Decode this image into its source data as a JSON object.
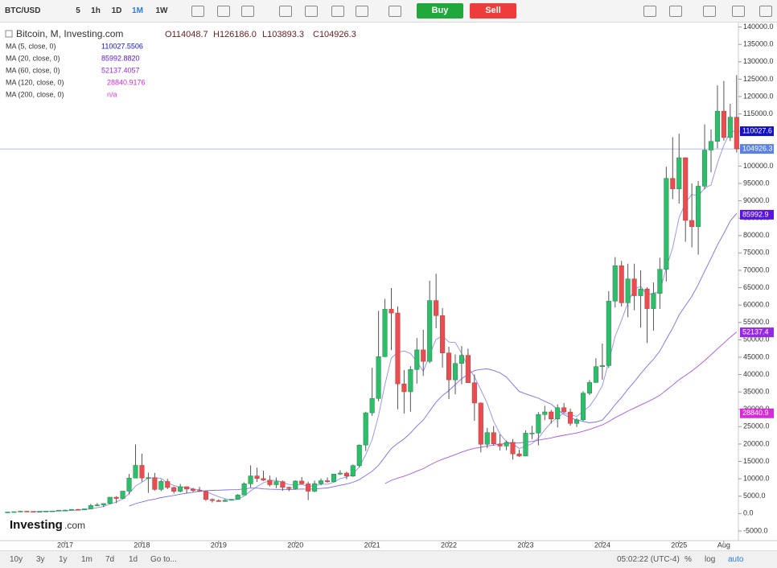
{
  "toolbar": {
    "symbol": "BTC/USD",
    "intervals": [
      "5",
      "1h",
      "1D",
      "1M",
      "1W"
    ],
    "active_interval": 3,
    "buy": "Buy",
    "sell": "Sell"
  },
  "legend": {
    "title": "Bitcoin, M, Investing.com",
    "ohlc": [
      "O114048.7",
      "H126186.0",
      "L103893.3",
      "C104926.3"
    ]
  },
  "logo": "Investing",
  "logo_suffix": ".com",
  "bottom_bar": {
    "ranges": [
      "10y",
      "3y",
      "1y",
      "1m",
      "7d",
      "1d"
    ],
    "goto": "Go to...",
    "time": "05:02:22 (UTC-4)",
    "options": [
      "%",
      "log",
      "auto"
    ]
  },
  "chart_data": {
    "type": "candlestick",
    "up_color": "#2ebd6b",
    "down_color": "#ea4d4f",
    "candles": [
      [
        416,
        467,
        414,
        448
      ],
      [
        448,
        550,
        444,
        531
      ],
      [
        531,
        780,
        523,
        673
      ],
      [
        673,
        705,
        605,
        624
      ],
      [
        624,
        625,
        533,
        575
      ],
      [
        575,
        612,
        571,
        609
      ],
      [
        609,
        720,
        603,
        700
      ],
      [
        700,
        753,
        692,
        742
      ],
      [
        742,
        979,
        741,
        964
      ],
      [
        964,
        1153,
        756,
        970
      ],
      [
        970,
        1210,
        946,
        1190
      ],
      [
        1190,
        1345,
        890,
        1080
      ],
      [
        1080,
        1375,
        1080,
        1350
      ],
      [
        1350,
        2760,
        1350,
        2300
      ],
      [
        2300,
        3000,
        2100,
        2480
      ],
      [
        2480,
        2920,
        1840,
        2875
      ],
      [
        2875,
        4760,
        2700,
        4700
      ],
      [
        4700,
        5000,
        2980,
        4340
      ],
      [
        4340,
        6470,
        4160,
        6450
      ],
      [
        6450,
        11400,
        5500,
        10200
      ],
      [
        10200,
        19890,
        10200,
        13860
      ],
      [
        13860,
        17250,
        9200,
        10220
      ],
      [
        10220,
        11790,
        5950,
        10330
      ],
      [
        10330,
        11700,
        6580,
        6930
      ],
      [
        6930,
        9780,
        6450,
        9240
      ],
      [
        9240,
        10000,
        7040,
        7500
      ],
      [
        7500,
        7780,
        5770,
        6400
      ],
      [
        6400,
        8500,
        6070,
        7730
      ],
      [
        7730,
        7760,
        5880,
        7030
      ],
      [
        7030,
        7410,
        6110,
        6630
      ],
      [
        6630,
        7680,
        6200,
        6370
      ],
      [
        6370,
        6620,
        3650,
        4040
      ],
      [
        4040,
        4380,
        3160,
        3740
      ],
      [
        3740,
        4090,
        3400,
        3460
      ],
      [
        3460,
        4200,
        3380,
        3820
      ],
      [
        3820,
        4140,
        3720,
        4100
      ],
      [
        4100,
        5600,
        4050,
        5320
      ],
      [
        5320,
        9000,
        5320,
        8560
      ],
      [
        8560,
        13880,
        7500,
        10820
      ],
      [
        10820,
        13200,
        9100,
        10080
      ],
      [
        10080,
        12300,
        9400,
        9600
      ],
      [
        9600,
        10910,
        7800,
        8290
      ],
      [
        8290,
        10370,
        7300,
        9200
      ],
      [
        9200,
        9510,
        6520,
        7550
      ],
      [
        7550,
        7750,
        6430,
        7190
      ],
      [
        7190,
        9580,
        6870,
        9350
      ],
      [
        9350,
        10500,
        8450,
        8540
      ],
      [
        8540,
        9190,
        3860,
        6420
      ],
      [
        6420,
        9470,
        6150,
        8620
      ],
      [
        8620,
        10080,
        8100,
        9450
      ],
      [
        9450,
        10400,
        8900,
        9140
      ],
      [
        9140,
        11450,
        8960,
        11350
      ],
      [
        11350,
        12470,
        11110,
        11650
      ],
      [
        11650,
        12050,
        9880,
        10780
      ],
      [
        10780,
        14100,
        10540,
        13800
      ],
      [
        13800,
        19880,
        13260,
        19700
      ],
      [
        19700,
        29300,
        18000,
        28990
      ],
      [
        28990,
        41950,
        28130,
        33110
      ],
      [
        33110,
        58350,
        32300,
        45140
      ],
      [
        45140,
        61780,
        45000,
        58800
      ],
      [
        58800,
        64900,
        47000,
        57700
      ],
      [
        57700,
        59600,
        30000,
        37300
      ],
      [
        37300,
        41300,
        28800,
        35040
      ],
      [
        35040,
        42400,
        29300,
        41460
      ],
      [
        41460,
        50500,
        37400,
        47100
      ],
      [
        47100,
        52900,
        39600,
        43790
      ],
      [
        43790,
        67000,
        43300,
        61300
      ],
      [
        61300,
        69000,
        53300,
        56950
      ],
      [
        56950,
        59100,
        42000,
        46200
      ],
      [
        46200,
        47990,
        32950,
        38480
      ],
      [
        38480,
        45800,
        34320,
        43190
      ],
      [
        43190,
        48200,
        37200,
        45540
      ],
      [
        45540,
        47440,
        37700,
        37640
      ],
      [
        37640,
        40020,
        26700,
        31800
      ],
      [
        31800,
        31990,
        17600,
        19930
      ],
      [
        19930,
        24670,
        18800,
        23300
      ],
      [
        23300,
        25200,
        19600,
        20050
      ],
      [
        20050,
        22790,
        18150,
        19420
      ],
      [
        19420,
        21000,
        18200,
        20490
      ],
      [
        20490,
        21450,
        15500,
        17170
      ],
      [
        17170,
        18400,
        16300,
        16540
      ],
      [
        16540,
        23950,
        16500,
        23130
      ],
      [
        23130,
        25250,
        21400,
        23150
      ],
      [
        23150,
        29200,
        19600,
        28480
      ],
      [
        28480,
        31000,
        26900,
        29250
      ],
      [
        29250,
        29850,
        25900,
        27220
      ],
      [
        27220,
        31400,
        24800,
        30470
      ],
      [
        30470,
        31800,
        28900,
        29230
      ],
      [
        29230,
        30200,
        25300,
        25940
      ],
      [
        25940,
        27500,
        24900,
        26970
      ],
      [
        26970,
        35200,
        26600,
        34650
      ],
      [
        34650,
        38400,
        34100,
        37720
      ],
      [
        37720,
        44700,
        37600,
        42280
      ],
      [
        42280,
        48900,
        38500,
        42580
      ],
      [
        42580,
        64000,
        41900,
        61130
      ],
      [
        61130,
        73800,
        59300,
        71330
      ],
      [
        71330,
        72700,
        59600,
        60640
      ],
      [
        60640,
        71900,
        56500,
        67520
      ],
      [
        67520,
        71900,
        58500,
        62680
      ],
      [
        62680,
        70000,
        53500,
        64620
      ],
      [
        64620,
        65100,
        49100,
        58970
      ],
      [
        58970,
        66500,
        52600,
        63330
      ],
      [
        63330,
        73600,
        58900,
        70290
      ],
      [
        70290,
        99800,
        66800,
        96450
      ],
      [
        96450,
        108300,
        90500,
        93430
      ],
      [
        93430,
        109300,
        89200,
        102400
      ],
      [
        102400,
        102500,
        78200,
        84350
      ],
      [
        84350,
        95000,
        76600,
        82550
      ],
      [
        82550,
        95700,
        74500,
        94200
      ],
      [
        94200,
        112000,
        93300,
        104600
      ],
      [
        104600,
        110500,
        98200,
        107100
      ],
      [
        107100,
        123200,
        105100,
        115800
      ],
      [
        115800,
        124500,
        107300,
        108200
      ],
      [
        108200,
        117900,
        107200,
        114050
      ],
      [
        114048.7,
        126186.0,
        103893.3,
        104926.3
      ]
    ],
    "xticks": [
      {
        "value": 9,
        "label": "2017"
      },
      {
        "value": 21,
        "label": "2018"
      },
      {
        "value": 33,
        "label": "2019"
      },
      {
        "value": 45,
        "label": "2020"
      },
      {
        "value": 57,
        "label": "2021"
      },
      {
        "value": 69,
        "label": "2022"
      },
      {
        "value": 81,
        "label": "2023"
      },
      {
        "value": 93,
        "label": "2024"
      },
      {
        "value": 105,
        "label": "2025"
      },
      {
        "value": 112,
        "label": "Aug"
      }
    ],
    "ylim": [
      -7800,
      141300
    ],
    "yticks": [
      {
        "value": 140000,
        "label": "140000.0"
      },
      {
        "value": 135000,
        "label": "135000.0"
      },
      {
        "value": 130000,
        "label": "130000.0"
      },
      {
        "value": 125000,
        "label": "125000.0"
      },
      {
        "value": 120000,
        "label": "120000.0"
      },
      {
        "value": 115000,
        "label": "115000.0"
      },
      {
        "value": 110000,
        "label": "110000.0"
      },
      {
        "value": 105000,
        "label": "105000.0"
      },
      {
        "value": 100000,
        "label": "100000.0"
      },
      {
        "value": 95000,
        "label": "95000.0"
      },
      {
        "value": 90000,
        "label": "90000.0"
      },
      {
        "value": 85000,
        "label": "85000.0"
      },
      {
        "value": 80000,
        "label": "80000.0"
      },
      {
        "value": 75000,
        "label": "75000.0"
      },
      {
        "value": 70000,
        "label": "70000.0"
      },
      {
        "value": 65000,
        "label": "65000.0"
      },
      {
        "value": 60000,
        "label": "60000.0"
      },
      {
        "value": 55000,
        "label": "55000.0"
      },
      {
        "value": 50000,
        "label": "50000.0"
      },
      {
        "value": 45000,
        "label": "45000.0"
      },
      {
        "value": 40000,
        "label": "40000.0"
      },
      {
        "value": 35000,
        "label": "35000.0"
      },
      {
        "value": 30000,
        "label": "30000.0"
      },
      {
        "value": 25000,
        "label": "25000.0"
      },
      {
        "value": 20000,
        "label": "20000.0"
      },
      {
        "value": 15000,
        "label": "15000.0"
      },
      {
        "value": 10000,
        "label": "10000.0"
      },
      {
        "value": 5000,
        "label": "5000.0"
      },
      {
        "value": 0,
        "label": "0.0"
      },
      {
        "value": -5000,
        "label": "-5000.0"
      }
    ],
    "last_price": 104926.3,
    "last_price_color": "#5b82e0",
    "moving_averages": [
      {
        "name": "MA (5, close, 0)",
        "period": 5,
        "value_label": "110027.5506",
        "tag": 110027.6,
        "color": "#1010c8",
        "line_color": "#8f8ff0"
      },
      {
        "name": "MA (20, close, 0)",
        "period": 20,
        "value_label": "85992.8820",
        "tag": 85992.9,
        "color": "#5a14e0",
        "line_color": "#7b6bf0"
      },
      {
        "name": "MA (60, close, 0)",
        "period": 60,
        "value_label": "52137.4057",
        "tag": 52137.4,
        "color": "#9528e0",
        "line_color": "#a655ee"
      },
      {
        "name": "MA (120, close, 0)",
        "period": 120,
        "value_label": "28840.9176",
        "tag": 28840.9,
        "color": "#d62bd6",
        "line_color": "#e055e0"
      },
      {
        "name": "MA (200, close, 0)",
        "period": 200,
        "value_label": "n/a",
        "color": "#e63ce6",
        "line_color": "#e63ce6"
      }
    ]
  }
}
